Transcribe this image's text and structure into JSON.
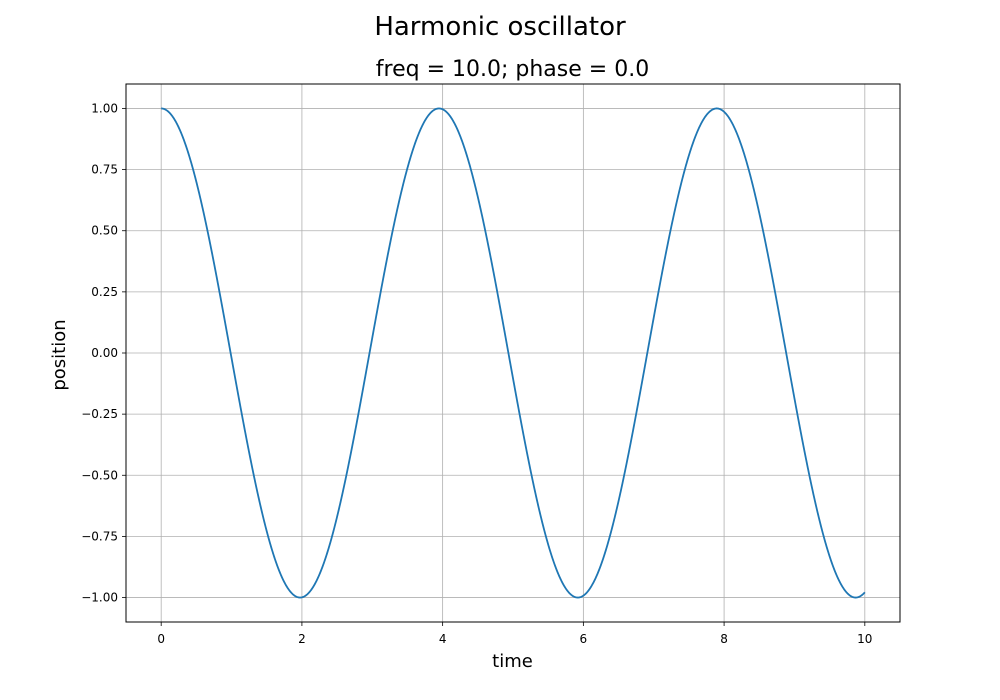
{
  "figure": {
    "suptitle": "Harmonic oscillator"
  },
  "chart_data": {
    "type": "line",
    "title": "freq = 10.0; phase = 0.0",
    "xlabel": "time",
    "ylabel": "position",
    "xlim": [
      -0.5,
      10.5
    ],
    "ylim": [
      -1.1,
      1.1
    ],
    "grid": true,
    "legend": "none",
    "function": "position = cos(freq * time / (2 * pi) + phase)",
    "freq": 10.0,
    "phase": 0.0,
    "x_range": [
      0,
      10
    ],
    "xticks": [
      0,
      2,
      4,
      6,
      8,
      10
    ],
    "xtick_labels": [
      "0",
      "2",
      "4",
      "6",
      "8",
      "10"
    ],
    "yticks": [
      1.0,
      0.75,
      0.5,
      0.25,
      0.0,
      -0.25,
      -0.5,
      -0.75,
      -1.0
    ],
    "ytick_labels": [
      "1.00",
      "0.75",
      "0.50",
      "0.25",
      "0.00",
      "−0.25",
      "−0.50",
      "−0.75",
      "−1.00"
    ],
    "series": [
      {
        "color": "#1f77b4"
      }
    ]
  }
}
